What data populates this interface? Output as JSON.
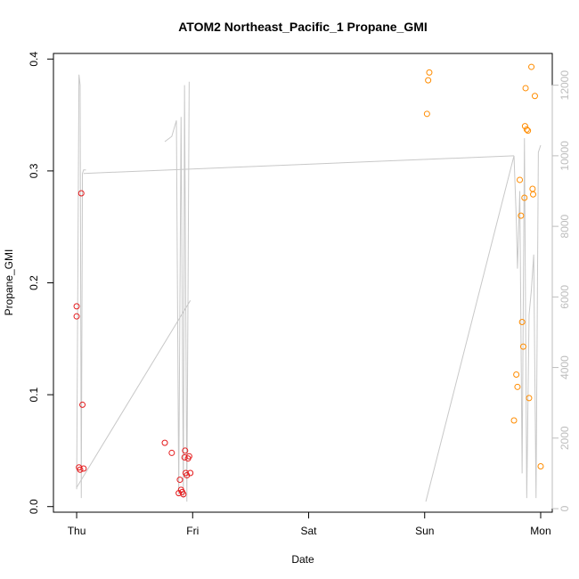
{
  "chart_data": {
    "type": "scatter",
    "title": "ATOM2 Northeast_Pacific_1 Propane_GMI",
    "xlabel": "Date",
    "ylabel": "Propane_GMI",
    "x_ticks": [
      "Thu",
      "Fri",
      "Sat",
      "Sun",
      "Mon"
    ],
    "xlim": [
      -0.2,
      4.1
    ],
    "ylim": [
      -0.005,
      0.405
    ],
    "y_ticks": [
      "0.0",
      "0.1",
      "0.2",
      "0.3",
      "0.4"
    ],
    "y_tick_values": [
      0.0,
      0.1,
      0.2,
      0.3,
      0.4
    ],
    "right_axis": {
      "ylim": [
        -100,
        12900
      ],
      "ticks": [
        "0",
        "2000",
        "4000",
        "6000",
        "8000",
        "10000",
        "12000"
      ],
      "tick_values": [
        0,
        2000,
        4000,
        6000,
        8000,
        10000,
        12000
      ],
      "color": "#bdbdbd"
    },
    "colors": {
      "series_red": "#e41a1c",
      "series_orange": "#ff8c00",
      "line": "#c8c8c8",
      "axis": "#000000"
    },
    "series": [
      {
        "color": "#e41a1c",
        "points": [
          [
            0.0,
            0.179
          ],
          [
            0.0,
            0.17
          ],
          [
            0.02,
            0.035
          ],
          [
            0.03,
            0.033
          ],
          [
            0.04,
            0.28
          ],
          [
            0.05,
            0.091
          ],
          [
            0.06,
            0.034
          ],
          [
            0.76,
            0.057
          ],
          [
            0.82,
            0.048
          ],
          [
            0.88,
            0.012
          ],
          [
            0.89,
            0.024
          ],
          [
            0.9,
            0.015
          ],
          [
            0.91,
            0.013
          ],
          [
            0.92,
            0.011
          ],
          [
            0.93,
            0.044
          ],
          [
            0.935,
            0.05
          ],
          [
            0.94,
            0.03
          ],
          [
            0.95,
            0.028
          ],
          [
            0.96,
            0.043
          ],
          [
            0.97,
            0.045
          ],
          [
            0.98,
            0.03
          ]
        ]
      },
      {
        "color": "#ff8c00",
        "points": [
          [
            3.02,
            0.351
          ],
          [
            3.03,
            0.381
          ],
          [
            3.04,
            0.388
          ],
          [
            3.77,
            0.077
          ],
          [
            3.79,
            0.118
          ],
          [
            3.8,
            0.107
          ],
          [
            3.82,
            0.292
          ],
          [
            3.83,
            0.26
          ],
          [
            3.84,
            0.165
          ],
          [
            3.85,
            0.143
          ],
          [
            3.86,
            0.276
          ],
          [
            3.865,
            0.34
          ],
          [
            3.87,
            0.374
          ],
          [
            3.88,
            0.337
          ],
          [
            3.89,
            0.336
          ],
          [
            3.9,
            0.097
          ],
          [
            3.92,
            0.393
          ],
          [
            3.93,
            0.284
          ],
          [
            3.935,
            0.279
          ],
          [
            3.95,
            0.367
          ],
          [
            4.0,
            0.036
          ]
        ]
      }
    ],
    "line": {
      "color": "#c8c8c8",
      "axis": "right",
      "x": [
        0.0,
        0.02,
        0.03,
        0.04,
        0.05,
        0.06,
        0.07,
        0.08,
        null,
        0.0,
        0.98,
        null,
        0.76,
        0.82,
        0.86,
        0.88,
        0.9,
        0.92,
        0.93,
        0.95,
        0.97,
        null,
        3.01,
        3.77,
        3.79,
        3.8,
        3.82,
        3.84,
        3.86,
        3.88,
        3.9,
        3.92,
        3.94,
        3.96,
        3.98,
        4.0
      ],
      "y": [
        550,
        12300,
        12000,
        300,
        9500,
        9600,
        9600,
        9600,
        null,
        600,
        5900,
        null,
        10400,
        10550,
        11000,
        400,
        11100,
        300,
        12000,
        200,
        12100,
        null,
        200,
        10000,
        8200,
        6800,
        9000,
        1000,
        10500,
        300,
        5500,
        6200,
        7200,
        300,
        10100,
        10300
      ]
    },
    "main_line": {
      "x": [
        0.06,
        3.77
      ],
      "y": [
        9500,
        10000
      ]
    }
  }
}
